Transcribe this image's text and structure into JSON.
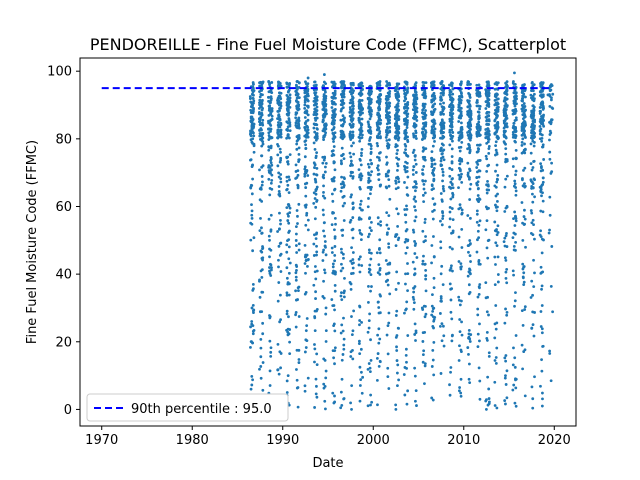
{
  "chart_data": {
    "type": "scatter",
    "title": "PENDOREILLE - Fine Fuel Moisture Code (FFMC), Scatterplot",
    "xlabel": "Date",
    "ylabel": "Fine Fuel Moisture Code (FFMC)",
    "xlim": [
      1967.6,
      2022.4
    ],
    "ylim": [
      -4.9,
      103.9
    ],
    "xticks": [
      1970,
      1980,
      1990,
      2000,
      2010,
      2020
    ],
    "yticks": [
      0,
      20,
      40,
      60,
      80,
      100
    ],
    "grid": false,
    "legend_position": "lower-left",
    "point_color": "#1f77b4",
    "reference_line": {
      "label": "90th percentile : 95.0",
      "value": 95.0,
      "x_range": [
        1970,
        2019.5
      ],
      "color": "#0000ff",
      "style": "dashed"
    },
    "seasons": {
      "first_year": 1986,
      "last_year": 2019,
      "start_month": 5,
      "end_month": 10,
      "note": "one scatter cluster per fire season; points densest between 80 and 97"
    },
    "sample_points": [
      [
        1986.5,
        6.0
      ],
      [
        1986.5,
        2.0
      ],
      [
        1986.6,
        30.0
      ],
      [
        1986.7,
        92.0
      ],
      [
        1990.5,
        5.0
      ],
      [
        1990.6,
        10.0
      ],
      [
        1992.8,
        98.0
      ],
      [
        1994.6,
        99.0
      ],
      [
        1996.4,
        0.5
      ],
      [
        1997.6,
        0.0
      ],
      [
        2002.5,
        0.0
      ],
      [
        2012.5,
        0.0
      ],
      [
        2015.6,
        99.5
      ],
      [
        2016.5,
        12.0
      ],
      [
        2019.3,
        93.0
      ]
    ]
  }
}
